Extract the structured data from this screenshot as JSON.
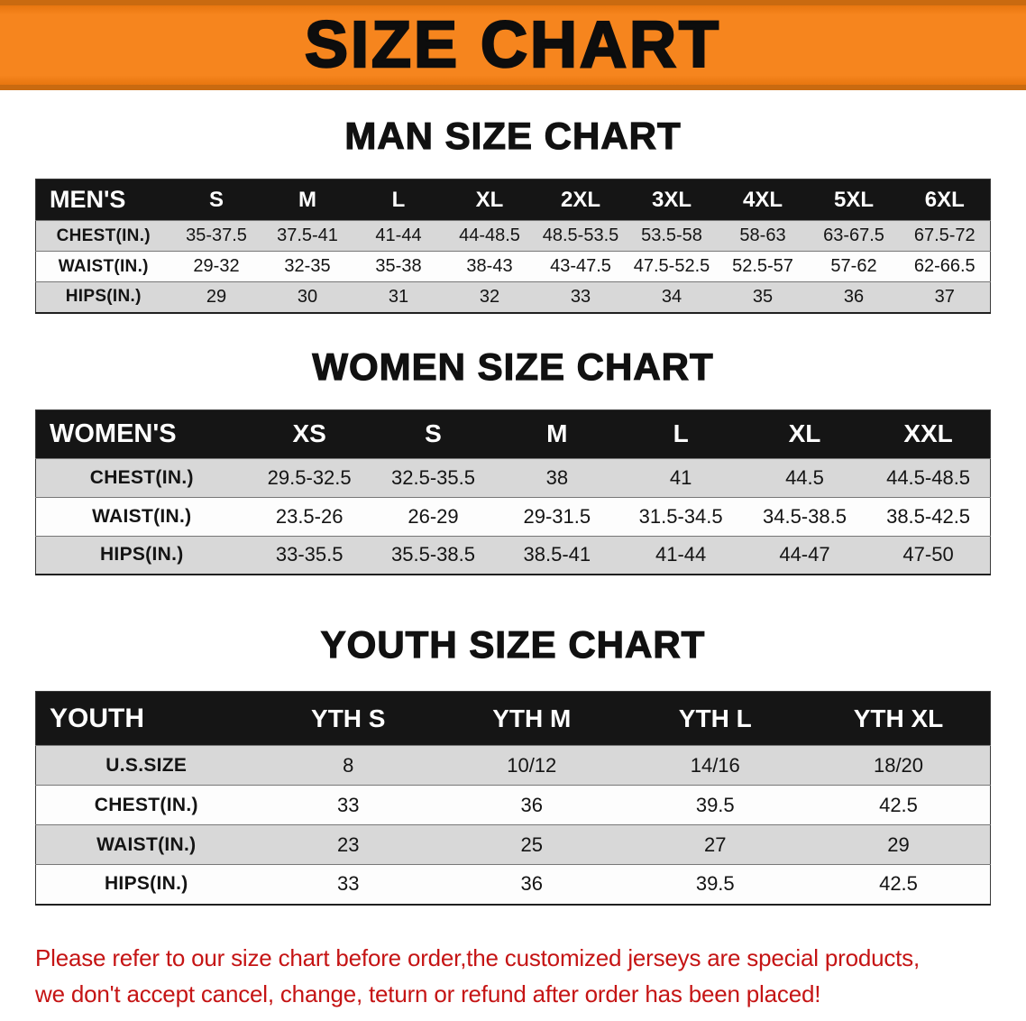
{
  "banner": {
    "title": "SIZE CHART",
    "background_color": "#F6851E",
    "text_color": "#0D0D0D"
  },
  "sections": {
    "men": {
      "heading": "MAN SIZE CHART",
      "table": {
        "header": [
          "MEN'S",
          "S",
          "M",
          "L",
          "XL",
          "2XL",
          "3XL",
          "4XL",
          "5XL",
          "6XL"
        ],
        "rows": [
          [
            "CHEST(IN.)",
            "35-37.5",
            "37.5-41",
            "41-44",
            "44-48.5",
            "48.5-53.5",
            "53.5-58",
            "58-63",
            "63-67.5",
            "67.5-72"
          ],
          [
            "WAIST(IN.)",
            "29-32",
            "32-35",
            "35-38",
            "38-43",
            "43-47.5",
            "47.5-52.5",
            "52.5-57",
            "57-62",
            "62-66.5"
          ],
          [
            "HIPS(IN.)",
            "29",
            "30",
            "31",
            "32",
            "33",
            "34",
            "35",
            "36",
            "37"
          ]
        ]
      }
    },
    "women": {
      "heading": "WOMEN SIZE CHART",
      "table": {
        "header": [
          "WOMEN'S",
          "XS",
          "S",
          "M",
          "L",
          "XL",
          "XXL"
        ],
        "rows": [
          [
            "CHEST(IN.)",
            "29.5-32.5",
            "32.5-35.5",
            "38",
            "41",
            "44.5",
            "44.5-48.5"
          ],
          [
            "WAIST(IN.)",
            "23.5-26",
            "26-29",
            "29-31.5",
            "31.5-34.5",
            "34.5-38.5",
            "38.5-42.5"
          ],
          [
            "HIPS(IN.)",
            "33-35.5",
            "35.5-38.5",
            "38.5-41",
            "41-44",
            "44-47",
            "47-50"
          ]
        ]
      }
    },
    "youth": {
      "heading": "YOUTH SIZE CHART",
      "table": {
        "header": [
          "YOUTH",
          "YTH S",
          "YTH M",
          "YTH L",
          "YTH XL"
        ],
        "rows": [
          [
            "U.S.SIZE",
            "8",
            "10/12",
            "14/16",
            "18/20"
          ],
          [
            "CHEST(IN.)",
            "33",
            "36",
            "39.5",
            "42.5"
          ],
          [
            "WAIST(IN.)",
            "23",
            "25",
            "27",
            "29"
          ],
          [
            "HIPS(IN.)",
            "33",
            "36",
            "39.5",
            "42.5"
          ]
        ]
      }
    }
  },
  "disclaimer": {
    "line1": "Please refer to our size chart before order,the customized jerseys are special products,",
    "line2": "we don't accept cancel, change, teturn or refund after order has been placed!",
    "text_color": "#C51414"
  },
  "colors": {
    "banner_orange": "#F6851E",
    "banner_edge_orange": "#C96A10",
    "table_header_black": "#151515",
    "row_stripe_gray": "#D8D8D8",
    "disclaimer_red": "#C51414"
  }
}
